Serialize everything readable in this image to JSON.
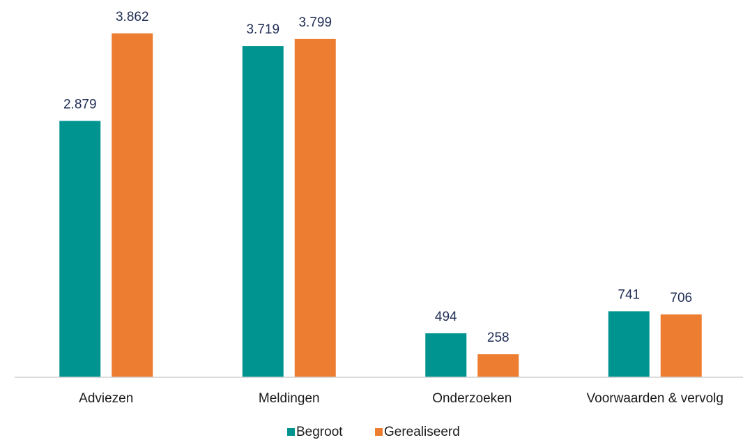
{
  "chart_data": {
    "type": "bar",
    "categories": [
      "Adviezen",
      "Meldingen",
      "Onderzoeken",
      "Voorwaarden & vervolg"
    ],
    "series": [
      {
        "name": "Begroot",
        "color": "#009490",
        "values": [
          2879,
          3719,
          494,
          741
        ],
        "value_labels": [
          "2.879",
          "3.719",
          "494",
          "741"
        ]
      },
      {
        "name": "Gerealiseerd",
        "color": "#ed7d31",
        "values": [
          3862,
          3799,
          258,
          706
        ],
        "value_labels": [
          "3.862",
          "3.799",
          "258",
          "706"
        ]
      }
    ],
    "ylim": [
      0,
      4000
    ],
    "legend": "bottom"
  }
}
